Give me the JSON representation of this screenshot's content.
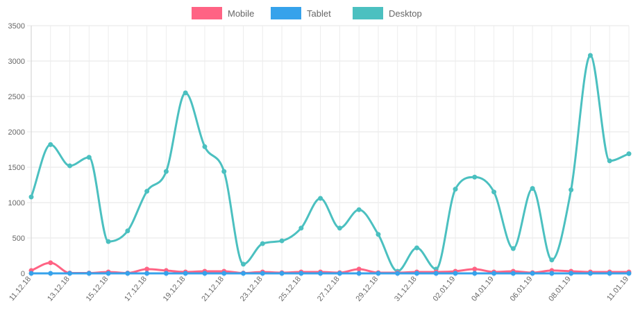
{
  "chart_data": {
    "type": "line",
    "title": "",
    "xlabel": "",
    "ylabel": "",
    "ylim": [
      0,
      3500
    ],
    "yticks": [
      0,
      500,
      1000,
      1500,
      2000,
      2500,
      3000,
      3500
    ],
    "grid": true,
    "legend_position": "top",
    "x": [
      "11.12.18",
      "12.12.18",
      "13.12.18",
      "14.12.18",
      "15.12.18",
      "16.12.18",
      "17.12.18",
      "18.12.18",
      "19.12.18",
      "20.12.18",
      "21.12.18",
      "22.12.18",
      "23.12.18",
      "24.12.18",
      "25.12.18",
      "26.12.18",
      "27.12.18",
      "28.12.18",
      "29.12.18",
      "30.12.18",
      "31.12.18",
      "01.01.19",
      "02.01.19",
      "03.01.19",
      "04.01.19",
      "05.01.19",
      "06.01.19",
      "07.01.19",
      "08.01.19",
      "09.01.19",
      "10.01.19",
      "11.01.19"
    ],
    "x_tick_labels": [
      "11.12.18",
      "",
      "13.12.18",
      "",
      "15.12.18",
      "",
      "17.12.18",
      "",
      "19.12.18",
      "",
      "21.12.18",
      "",
      "23.12.18",
      "",
      "25.12.18",
      "",
      "27.12.18",
      "",
      "29.12.18",
      "",
      "31.12.18",
      "",
      "02.01.19",
      "",
      "04.01.19",
      "",
      "06.01.19",
      "",
      "08.01.19",
      "",
      "",
      "11.01.19"
    ],
    "series": [
      {
        "name": "Mobile",
        "color": "#ff6384",
        "values": [
          40,
          150,
          5,
          5,
          20,
          5,
          60,
          40,
          20,
          30,
          30,
          5,
          20,
          10,
          20,
          20,
          10,
          60,
          10,
          10,
          20,
          20,
          30,
          60,
          20,
          30,
          10,
          40,
          30,
          20,
          20,
          20
        ]
      },
      {
        "name": "Tablet",
        "color": "#36a2eb",
        "values": [
          0,
          0,
          0,
          0,
          0,
          0,
          0,
          0,
          0,
          0,
          0,
          0,
          0,
          0,
          0,
          0,
          0,
          0,
          0,
          0,
          0,
          0,
          0,
          0,
          0,
          0,
          0,
          0,
          0,
          0,
          0,
          0
        ]
      },
      {
        "name": "Desktop",
        "color": "#4bc0c0",
        "values": [
          1080,
          1820,
          1520,
          1640,
          450,
          600,
          1160,
          1440,
          2550,
          1790,
          1440,
          130,
          420,
          460,
          640,
          1060,
          640,
          900,
          550,
          30,
          360,
          60,
          1190,
          1360,
          1150,
          350,
          1200,
          190,
          1180,
          3080,
          1590,
          1690
        ]
      }
    ]
  }
}
